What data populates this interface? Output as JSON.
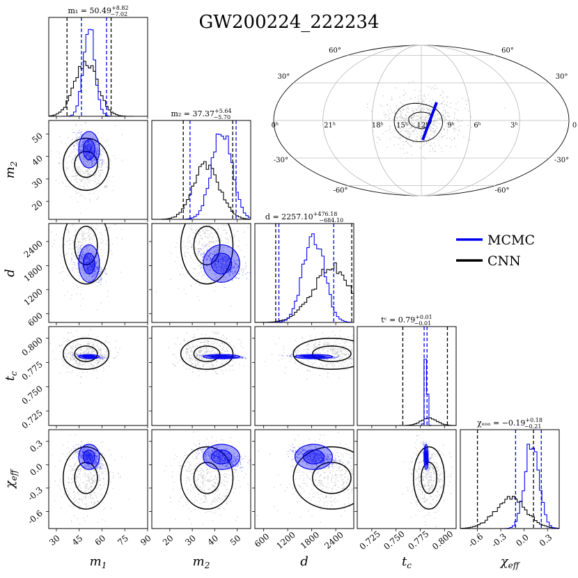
{
  "chart_data": {
    "type": "corner",
    "title": "GW200224_222234",
    "parameters": [
      {
        "key": "m1",
        "label": "m",
        "label_sub": "1",
        "range": [
          25,
          90
        ],
        "ticks": [
          30,
          45,
          60,
          75,
          90
        ],
        "tick_labels": [
          "30",
          "45",
          "60",
          "75",
          "90"
        ],
        "summary": "m₁ = 50.49",
        "summary_up": "+8.82",
        "summary_down": "−7.02",
        "mcmc_mean": 51.5,
        "mcmc_sd": 3.8,
        "mcmc_q": [
          46.5,
          63.0
        ],
        "cnn_mean": 49.5,
        "cnn_sd": 7.5,
        "cnn_q": [
          37.0,
          66.0
        ]
      },
      {
        "key": "m2",
        "label": "m",
        "label_sub": "2",
        "range": [
          12,
          56
        ],
        "ticks": [
          20,
          30,
          40,
          50
        ],
        "tick_labels": [
          "20",
          "30",
          "40",
          "50"
        ],
        "summary": "m₂ = 37.37",
        "summary_up": "+5.64",
        "summary_down": "−5.70",
        "mcmc_mean": 43.0,
        "mcmc_sd": 4.5,
        "mcmc_q": [
          29.0,
          49.5
        ],
        "cnn_mean": 36.5,
        "cnn_sd": 5.8,
        "cnn_q": [
          26.0,
          48.0
        ]
      },
      {
        "key": "d",
        "label": "d",
        "label_sub": "",
        "range": [
          380,
          2850
        ],
        "ticks": [
          600,
          1200,
          1800,
          2400
        ],
        "tick_labels": [
          "600",
          "1200",
          "1800",
          "2400"
        ],
        "summary": "d = 2257.10",
        "summary_up": "+476.18",
        "summary_down": "−684.10",
        "mcmc_mean": 1850,
        "mcmc_sd": 260,
        "mcmc_q": [
          980,
          2350
        ],
        "cnn_mean": 2300,
        "cnn_sd": 480,
        "cnn_q": [
          900,
          2800
        ]
      },
      {
        "key": "tc",
        "label": "t",
        "label_sub": "c",
        "range": [
          0.71,
          0.812
        ],
        "ticks": [
          0.725,
          0.75,
          0.775,
          0.8
        ],
        "tick_labels": [
          "0.725",
          "0.750",
          "0.775",
          "0.800"
        ],
        "summary": "tᶜ = 0.79",
        "summary_up": "+0.01",
        "summary_down": "−0.01",
        "mcmc_mean": 0.781,
        "mcmc_sd": 0.0012,
        "mcmc_q": [
          0.779,
          0.782
        ],
        "cnn_mean": 0.784,
        "cnn_sd": 0.008,
        "cnn_q": [
          0.757,
          0.803
        ]
      },
      {
        "key": "chi",
        "label": "χ",
        "label_sub": "eff",
        "range": [
          -0.82,
          0.45
        ],
        "ticks": [
          -0.6,
          -0.3,
          0.0,
          0.3
        ],
        "tick_labels": [
          "-0.6",
          "-0.3",
          "0.0",
          "0.3"
        ],
        "summary": "χₑₒₒ = −0.19",
        "summary_up": "+0.18",
        "summary_down": "−0.21",
        "mcmc_mean": 0.1,
        "mcmc_sd": 0.09,
        "mcmc_q": [
          -0.11,
          0.22
        ],
        "cnn_mean": -0.17,
        "cnn_sd": 0.2,
        "cnn_q": [
          -0.6,
          0.12
        ]
      }
    ],
    "legend": [
      {
        "name": "MCMC",
        "color": "#0000ee"
      },
      {
        "name": "CNN",
        "color": "#000000"
      }
    ],
    "sky_map": {
      "ra_labels": [
        "0ʰ",
        "21ʰ",
        "18ʰ",
        "15ʰ",
        "12ʰ",
        "9ʰ",
        "6ʰ",
        "3ʰ",
        "0"
      ],
      "dec_labels_left": [
        "60°",
        "30°",
        "-30°",
        "-60°"
      ],
      "dec_labels_right": [
        "60°",
        "30°",
        "-30°",
        "-60°"
      ]
    },
    "colors": {
      "mcmc": "#0000ee",
      "cnn": "#000000",
      "scatter_cnn": "#777777",
      "scatter_mcmc": "#1a1aff"
    }
  }
}
